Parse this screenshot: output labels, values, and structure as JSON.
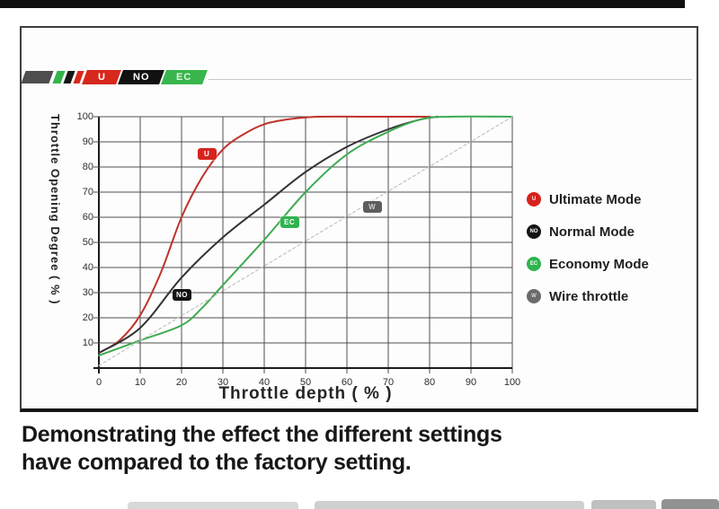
{
  "logo": {
    "segments": [
      {
        "label": "U",
        "color": "#d6281c",
        "text_color": "#ffffff"
      },
      {
        "label": "NO",
        "color": "#111111",
        "text_color": "#ffffff"
      },
      {
        "label": "EC",
        "color": "#38b64d",
        "text_color": "#e2f6e2"
      }
    ]
  },
  "chart_data": {
    "type": "line",
    "title": "",
    "xlabel": "Throttle depth ( % )",
    "ylabel": "Throttle Opening Degree ( % )",
    "xlim": [
      0,
      100
    ],
    "ylim": [
      0,
      100
    ],
    "grid": true,
    "legend_position": "right-outside",
    "x_ticks": [
      0,
      10,
      20,
      30,
      40,
      50,
      60,
      70,
      80,
      90,
      100
    ],
    "y_ticks": [
      10,
      20,
      30,
      40,
      50,
      60,
      70,
      80,
      90,
      100
    ],
    "series": [
      {
        "name": "Ultimate Mode",
        "badge": "U",
        "color": "#c0332c",
        "badge_color": "#d7231d",
        "style": "solid",
        "points": [
          [
            0,
            6
          ],
          [
            5,
            11
          ],
          [
            10,
            21
          ],
          [
            15,
            38
          ],
          [
            20,
            60
          ],
          [
            25,
            76
          ],
          [
            30,
            87
          ],
          [
            35,
            93
          ],
          [
            40,
            97
          ],
          [
            46,
            99
          ],
          [
            53,
            100
          ],
          [
            65,
            100
          ],
          [
            80,
            100
          ]
        ],
        "badge_pos": {
          "x": 26,
          "y": 85
        }
      },
      {
        "name": "Normal Mode",
        "badge": "NO",
        "color": "#333333",
        "badge_color": "#141414",
        "style": "solid",
        "points": [
          [
            0,
            6
          ],
          [
            10,
            16
          ],
          [
            20,
            36
          ],
          [
            30,
            52
          ],
          [
            40,
            65
          ],
          [
            50,
            78
          ],
          [
            60,
            88
          ],
          [
            70,
            95
          ],
          [
            78,
            99
          ],
          [
            82,
            100
          ]
        ],
        "badge_pos": {
          "x": 20,
          "y": 29
        }
      },
      {
        "name": "Economy Mode",
        "badge": "EC",
        "color": "#3fab52",
        "badge_color": "#2fb34f",
        "style": "solid",
        "points": [
          [
            0,
            5
          ],
          [
            10,
            11
          ],
          [
            20,
            17
          ],
          [
            25,
            24
          ],
          [
            30,
            33
          ],
          [
            40,
            51
          ],
          [
            50,
            70
          ],
          [
            60,
            85
          ],
          [
            70,
            94
          ],
          [
            78,
            99
          ],
          [
            85,
            100
          ],
          [
            100,
            100
          ]
        ],
        "badge_pos": {
          "x": 46,
          "y": 58
        }
      },
      {
        "name": "Wire throttle",
        "badge": "W",
        "color": "#c2c2c2",
        "badge_color": "#5d5d5d",
        "style": "dashed",
        "points": [
          [
            0,
            1
          ],
          [
            100,
            100
          ]
        ],
        "badge_pos": {
          "x": 66,
          "y": 64
        }
      }
    ]
  },
  "legend": [
    {
      "letter": "U",
      "label": "Ultimate Mode",
      "color": "#d7231d"
    },
    {
      "letter": "NO",
      "label": "Normal Mode",
      "color": "#141414"
    },
    {
      "letter": "EC",
      "label": "Economy Mode",
      "color": "#2fb34f"
    },
    {
      "letter": "W",
      "label": "Wire throttle",
      "color": "#6b6b6b"
    }
  ],
  "caption": {
    "line1": "Demonstrating the effect the different settings",
    "line2": "have compared to the factory setting."
  },
  "colors": {
    "grid": "#4f4f4f",
    "axis": "#1c1c1c",
    "frame": "#3f3f3f",
    "top_bar": "#101010"
  }
}
